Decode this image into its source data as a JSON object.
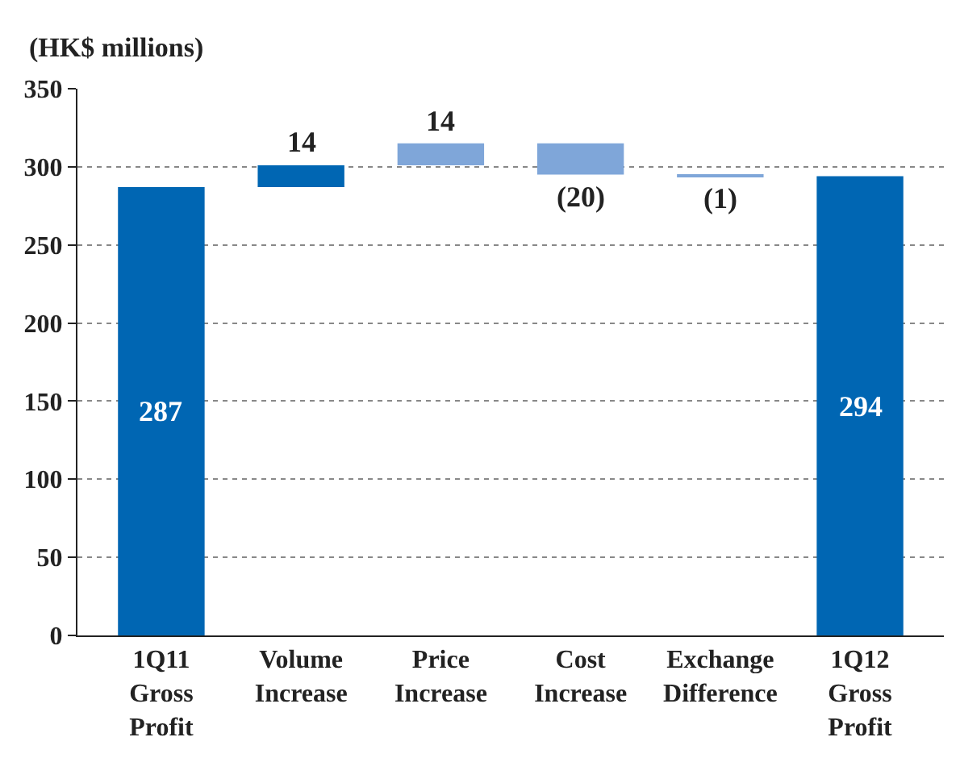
{
  "chart_data": {
    "type": "bar",
    "ylabel": "(HK$ millions)",
    "categories": [
      "1Q11\nGross\nProfit",
      "Volume\nIncrease",
      "Price\nIncrease",
      "Cost\nIncrease",
      "Exchange\nDifference",
      "1Q12\nGross\nProfit"
    ],
    "values": [
      287,
      14,
      14,
      -20,
      -1,
      294
    ],
    "base": [
      0,
      287,
      301,
      315,
      295,
      0
    ],
    "colors": [
      "#0066b3",
      "#0066b3",
      "#7fa6d9",
      "#7fa6d9",
      "#7fa6d9",
      "#0066b3"
    ],
    "value_labels": [
      "287",
      "14",
      "14",
      "(20)",
      "(1)",
      "294"
    ],
    "ylim": [
      0,
      350
    ],
    "yticks": [
      0,
      50,
      100,
      150,
      200,
      250,
      300,
      350
    ],
    "grid": "y"
  }
}
